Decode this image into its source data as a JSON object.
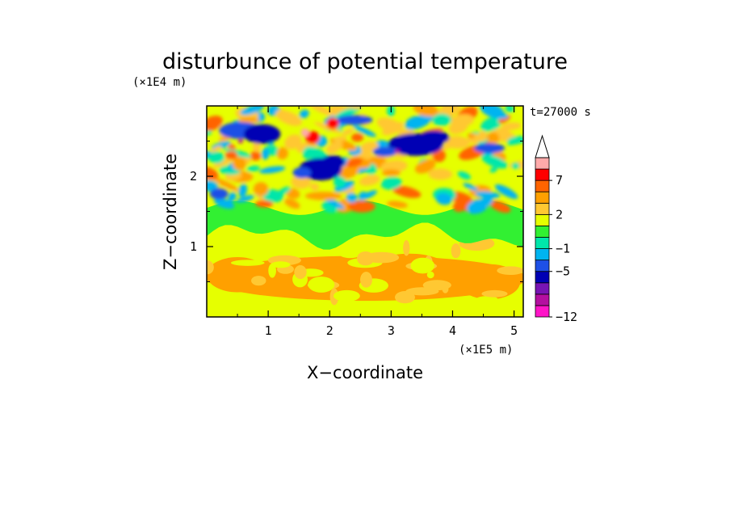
{
  "chart_data": {
    "type": "heatmap",
    "title": "disturbunce of potential temperature",
    "time_label": "t=27000 s",
    "xlabel": "X−coordinate",
    "ylabel": "Z−coordinate",
    "x_unit": "(×1E5 m)",
    "y_unit": "(×1E4 m)",
    "xlim": [
      0,
      5.15
    ],
    "ylim": [
      0,
      3.0
    ],
    "x_ticks": [
      "1",
      "2",
      "3",
      "4",
      "5"
    ],
    "y_ticks": [
      "1",
      "2"
    ],
    "x_tick_values": [
      1,
      2,
      3,
      4,
      5
    ],
    "y_tick_values": [
      1,
      2
    ],
    "grid": false,
    "colorbar": {
      "position": "right",
      "labels": [
        "7",
        "2",
        "−1",
        "−5",
        "−12"
      ],
      "label_values": [
        7,
        2,
        -1,
        -5,
        -12
      ],
      "extend": "max",
      "levels": [
        {
          "lower": -12,
          "upper": -10,
          "color": "#ff14c8"
        },
        {
          "lower": -10,
          "upper": -8,
          "color": "#b40fa0"
        },
        {
          "lower": -8,
          "upper": -6,
          "color": "#7814b4"
        },
        {
          "lower": -6,
          "upper": -5,
          "color": "#0000b4"
        },
        {
          "lower": -5,
          "upper": -3,
          "color": "#1e50e6"
        },
        {
          "lower": -3,
          "upper": -1,
          "color": "#00b4f0"
        },
        {
          "lower": -1,
          "upper": 0,
          "color": "#00e6aa"
        },
        {
          "lower": 0,
          "upper": 1,
          "color": "#32f032"
        },
        {
          "lower": 1,
          "upper": 2,
          "color": "#e6ff00"
        },
        {
          "lower": 2,
          "upper": 3,
          "color": "#ffc832"
        },
        {
          "lower": 3,
          "upper": 5,
          "color": "#ffa000"
        },
        {
          "lower": 5,
          "upper": 7,
          "color": "#ff6400"
        },
        {
          "lower": 7,
          "upper": 9,
          "color": "#ff0000"
        },
        {
          "lower": 9,
          "upper": 12,
          "color": "#ffaaaa"
        }
      ]
    },
    "regions": [
      {
        "desc": "lower layer 0-1.1E4 m",
        "value": 1.5
      },
      {
        "desc": "warm band near z=0.6E4 m",
        "value": 3
      },
      {
        "desc": "green transition 1.1-1.5E4 m",
        "value": 0.5
      },
      {
        "desc": "wave field 1.5-3.0E4 m",
        "value_range": [
          -12,
          12
        ]
      },
      {
        "desc": "cold cells x=0.5-1.2, z~2.6",
        "value": -5
      },
      {
        "desc": "cold cell x=1.5-2.2, z~2.1",
        "value": -5
      },
      {
        "desc": "cold cell x=3.0-3.9, z~2.4",
        "value": -6
      },
      {
        "desc": "warm cells x=1.5-2.2, z~2.6",
        "value": 8
      }
    ]
  }
}
